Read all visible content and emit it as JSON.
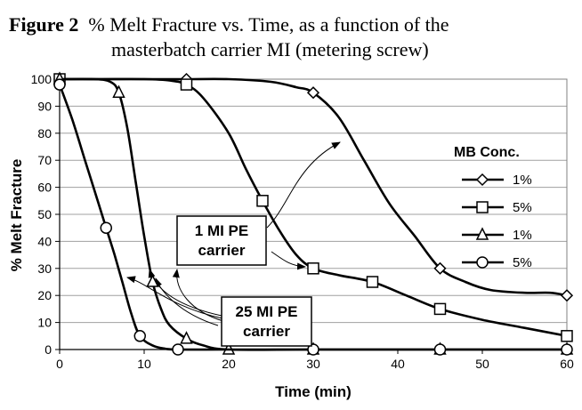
{
  "chart_data": {
    "type": "line",
    "title_prefix": "Figure 2",
    "title_line1": "% Melt Fracture vs. Time, as a function of the",
    "title_line2": "masterbatch carrier MI (metering screw)",
    "xlabel": "Time (min)",
    "ylabel": "% Melt Fracture",
    "xlim": [
      0,
      60
    ],
    "ylim": [
      0,
      100
    ],
    "xticks": [
      "0",
      "10",
      "20",
      "30",
      "40",
      "50",
      "60"
    ],
    "yticks": [
      "0",
      "10",
      "20",
      "30",
      "40",
      "50",
      "60",
      "70",
      "80",
      "90",
      "100"
    ],
    "grid": "horizontal",
    "legend_title": "MB Conc.",
    "legend_position": "right",
    "series": [
      {
        "name": "1%",
        "marker": "diamond",
        "markers": [
          [
            0,
            100
          ],
          [
            15,
            100
          ],
          [
            30,
            95
          ],
          [
            45,
            30
          ],
          [
            60,
            20
          ]
        ],
        "curve": [
          [
            0,
            100
          ],
          [
            10,
            100
          ],
          [
            15,
            100
          ],
          [
            20,
            100
          ],
          [
            25,
            99
          ],
          [
            28,
            97
          ],
          [
            30,
            95
          ],
          [
            33,
            86
          ],
          [
            36,
            70
          ],
          [
            39,
            54
          ],
          [
            42,
            42
          ],
          [
            45,
            30
          ],
          [
            48,
            25
          ],
          [
            51,
            22
          ],
          [
            55,
            21
          ],
          [
            58,
            21
          ],
          [
            60,
            20
          ]
        ]
      },
      {
        "name": "5%",
        "marker": "square",
        "markers": [
          [
            0,
            100
          ],
          [
            15,
            98
          ],
          [
            24,
            55
          ],
          [
            30,
            30
          ],
          [
            37,
            25
          ],
          [
            45,
            15
          ],
          [
            60,
            5
          ]
        ],
        "curve": [
          [
            0,
            100
          ],
          [
            5,
            100
          ],
          [
            10,
            100
          ],
          [
            13,
            99.5
          ],
          [
            15,
            98
          ],
          [
            17,
            93
          ],
          [
            20,
            80
          ],
          [
            22,
            67
          ],
          [
            24,
            55
          ],
          [
            26,
            44
          ],
          [
            28,
            35
          ],
          [
            30,
            30
          ],
          [
            33,
            27.5
          ],
          [
            37,
            25
          ],
          [
            41,
            20
          ],
          [
            45,
            15
          ],
          [
            50,
            11
          ],
          [
            55,
            8
          ],
          [
            60,
            5
          ]
        ]
      },
      {
        "name": "1%",
        "marker": "triangle",
        "markers": [
          [
            0,
            100
          ],
          [
            7,
            95
          ],
          [
            11,
            25
          ],
          [
            15,
            4
          ],
          [
            20,
            0
          ],
          [
            30,
            0
          ],
          [
            45,
            0
          ],
          [
            60,
            0
          ]
        ],
        "curve": [
          [
            0,
            100
          ],
          [
            4,
            100
          ],
          [
            6,
            99
          ],
          [
            7,
            95
          ],
          [
            8,
            82
          ],
          [
            9,
            62
          ],
          [
            10,
            42
          ],
          [
            11,
            25
          ],
          [
            12,
            15
          ],
          [
            13,
            9
          ],
          [
            15,
            4
          ],
          [
            17,
            1.5
          ],
          [
            20,
            0
          ],
          [
            30,
            0
          ],
          [
            45,
            0
          ],
          [
            60,
            0
          ]
        ]
      },
      {
        "name": "5%",
        "marker": "circle",
        "markers": [
          [
            0,
            98
          ],
          [
            5.5,
            45
          ],
          [
            9.5,
            5
          ],
          [
            14,
            0
          ],
          [
            30,
            0
          ],
          [
            45,
            0
          ],
          [
            60,
            0
          ]
        ],
        "curve": [
          [
            0,
            98
          ],
          [
            1.5,
            85
          ],
          [
            3,
            70
          ],
          [
            4.5,
            55
          ],
          [
            5.5,
            45
          ],
          [
            6.5,
            35
          ],
          [
            7.5,
            24
          ],
          [
            8.5,
            13
          ],
          [
            9.5,
            5
          ],
          [
            11,
            1.5
          ],
          [
            12.5,
            0.3
          ],
          [
            14,
            0
          ],
          [
            20,
            0
          ],
          [
            30,
            0
          ],
          [
            45,
            0
          ],
          [
            60,
            0
          ]
        ]
      }
    ],
    "annotations": [
      {
        "lines": [
          "1 MI PE",
          "carrier"
        ]
      },
      {
        "lines": [
          "25 MI PE",
          "carrier"
        ]
      }
    ]
  }
}
